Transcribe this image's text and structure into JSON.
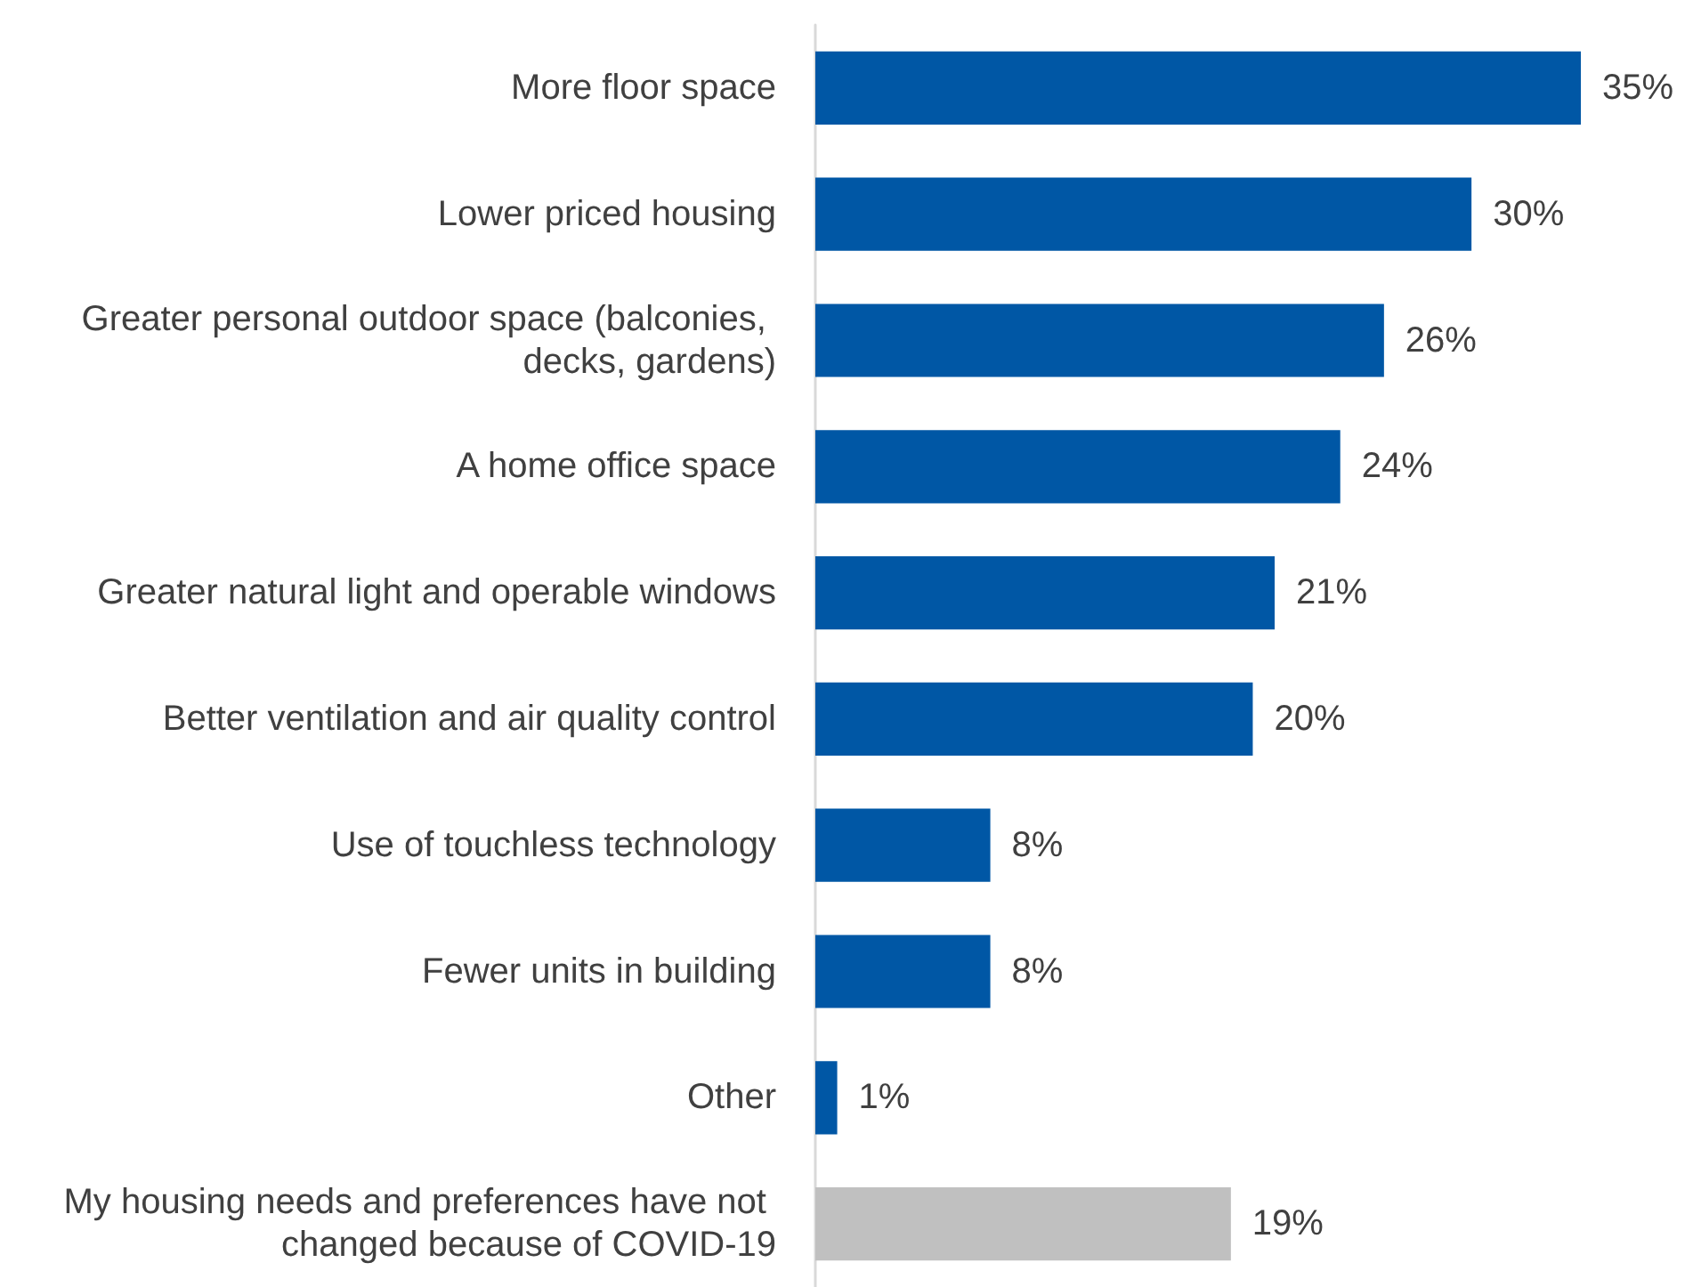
{
  "chart_data": {
    "type": "bar",
    "orientation": "horizontal",
    "tick_labels": "y",
    "categories": [
      "More floor space",
      "Lower priced housing",
      "Greater personal outdoor space (balconies, decks, gardens)",
      "A home office space",
      "Greater natural light and operable windows",
      "Better ventilation and air quality control",
      "Use of touchless technology",
      "Fewer units in building",
      "Other",
      "My housing needs and preferences have not changed because of COVID-19"
    ],
    "values": [
      35,
      30,
      26,
      24,
      21,
      20,
      8,
      8,
      1,
      19
    ],
    "colors": [
      "#0057a5",
      "#0057a5",
      "#0057a5",
      "#0057a5",
      "#0057a5",
      "#0057a5",
      "#0057a5",
      "#0057a5",
      "#0057a5",
      "#c0c0c0"
    ],
    "value_labels": [
      "35%",
      "30%",
      "26%",
      "24%",
      "21%",
      "20%",
      "8%",
      "8%",
      "1%",
      "19%"
    ]
  }
}
